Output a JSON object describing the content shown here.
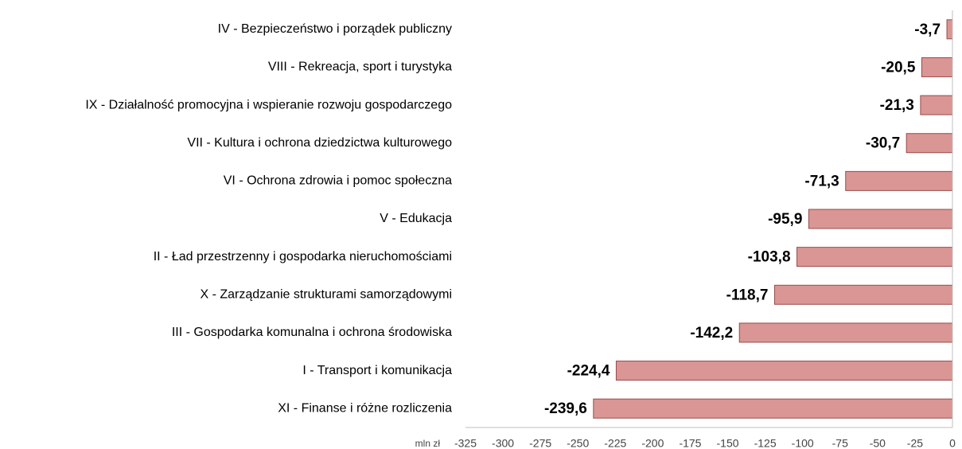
{
  "chart_data": {
    "type": "bar",
    "orientation": "horizontal",
    "x_axis_label": "mln zł",
    "categories": [
      "IV - Bezpieczeństwo i porządek publiczny",
      "VIII - Rekreacja, sport i turystyka",
      "IX - Działalność promocyjna i wspieranie rozwoju gospodarczego",
      "VII - Kultura i ochrona dziedzictwa kulturowego",
      "VI - Ochrona zdrowia i pomoc społeczna",
      "V - Edukacja",
      "II - Ład przestrzenny i gospodarka nieruchomościami",
      "X - Zarządzanie strukturami samorządowymi",
      "III - Gospodarka komunalna i ochrona środowiska",
      "I - Transport i komunikacja",
      "XI - Finanse i różne rozliczenia"
    ],
    "values": [
      -3.7,
      -20.5,
      -21.3,
      -30.7,
      -71.3,
      -95.9,
      -103.8,
      -118.7,
      -142.2,
      -224.4,
      -239.6
    ],
    "value_labels": [
      "-3,7",
      "-20,5",
      "-21,3",
      "-30,7",
      "-71,3",
      "-95,9",
      "-103,8",
      "-118,7",
      "-142,2",
      "-224,4",
      "-239,6"
    ],
    "color": "#d99694",
    "xlim": [
      -325,
      0
    ],
    "xticks": [
      -325,
      -300,
      -275,
      -250,
      -225,
      -200,
      -175,
      -150,
      -125,
      -100,
      -75,
      -50,
      -25,
      0
    ]
  }
}
